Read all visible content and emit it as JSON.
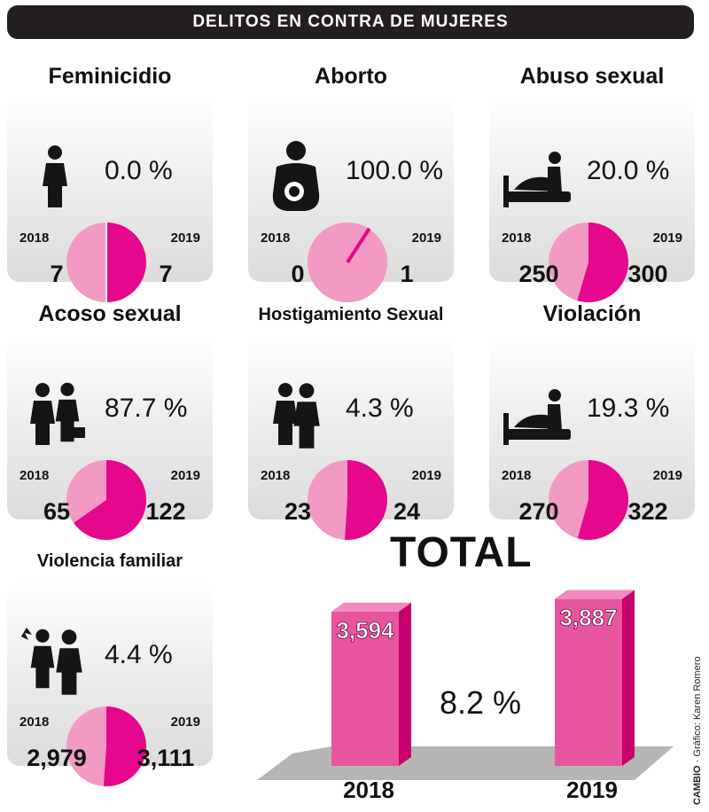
{
  "header": {
    "title": "DELITOS EN CONTRA DE MUJERES"
  },
  "colors": {
    "pink_2019": "#e5078c",
    "pink_2018": "#f29ac4",
    "banner": "#231f20"
  },
  "chart_data": [
    {
      "type": "pie",
      "title": "Feminicidio",
      "icon": "woman-icon",
      "change": "0.0 %",
      "categories": [
        "2018",
        "2019"
      ],
      "values": [
        7,
        7
      ],
      "labels": [
        "7",
        "7"
      ]
    },
    {
      "type": "pie",
      "title": "Aborto",
      "icon": "pregnant-woman-icon",
      "change": "100.0 %",
      "categories": [
        "2018",
        "2019"
      ],
      "values": [
        0,
        1
      ],
      "labels": [
        "0",
        "1"
      ]
    },
    {
      "type": "pie",
      "title": "Abuso sexual",
      "icon": "bed-assault-icon",
      "change": "20.0 %",
      "categories": [
        "2018",
        "2019"
      ],
      "values": [
        250,
        300
      ],
      "labels": [
        "250",
        "300"
      ]
    },
    {
      "type": "pie",
      "title": "Acoso sexual",
      "icon": "harassment-icon",
      "change": "87.7 %",
      "categories": [
        "2018",
        "2019"
      ],
      "values": [
        65,
        122
      ],
      "labels": [
        "65",
        "122"
      ]
    },
    {
      "type": "pie",
      "title": "Hostigamiento Sexual",
      "icon": "stalking-icon",
      "change": "4.3 %",
      "categories": [
        "2018",
        "2019"
      ],
      "values": [
        23,
        24
      ],
      "labels": [
        "23",
        "24"
      ]
    },
    {
      "type": "pie",
      "title": "Violación",
      "icon": "rape-icon",
      "change": "19.3 %",
      "categories": [
        "2018",
        "2019"
      ],
      "values": [
        270,
        322
      ],
      "labels": [
        "270",
        "322"
      ]
    },
    {
      "type": "pie",
      "title": "Violencia familiar",
      "icon": "domestic-violence-icon",
      "change": "4.4 %",
      "categories": [
        "2018",
        "2019"
      ],
      "values": [
        2979,
        3111
      ],
      "labels": [
        "2,979",
        "3,111"
      ]
    },
    {
      "type": "bar",
      "title": "TOTAL",
      "categories": [
        "2018",
        "2019"
      ],
      "values": [
        3594,
        3887
      ],
      "labels": [
        "3,594",
        "3,887"
      ],
      "change": "8.2 %"
    }
  ],
  "credit": {
    "brand": "CAMBIO",
    "text": "· Gráfico: Karen Romero"
  }
}
